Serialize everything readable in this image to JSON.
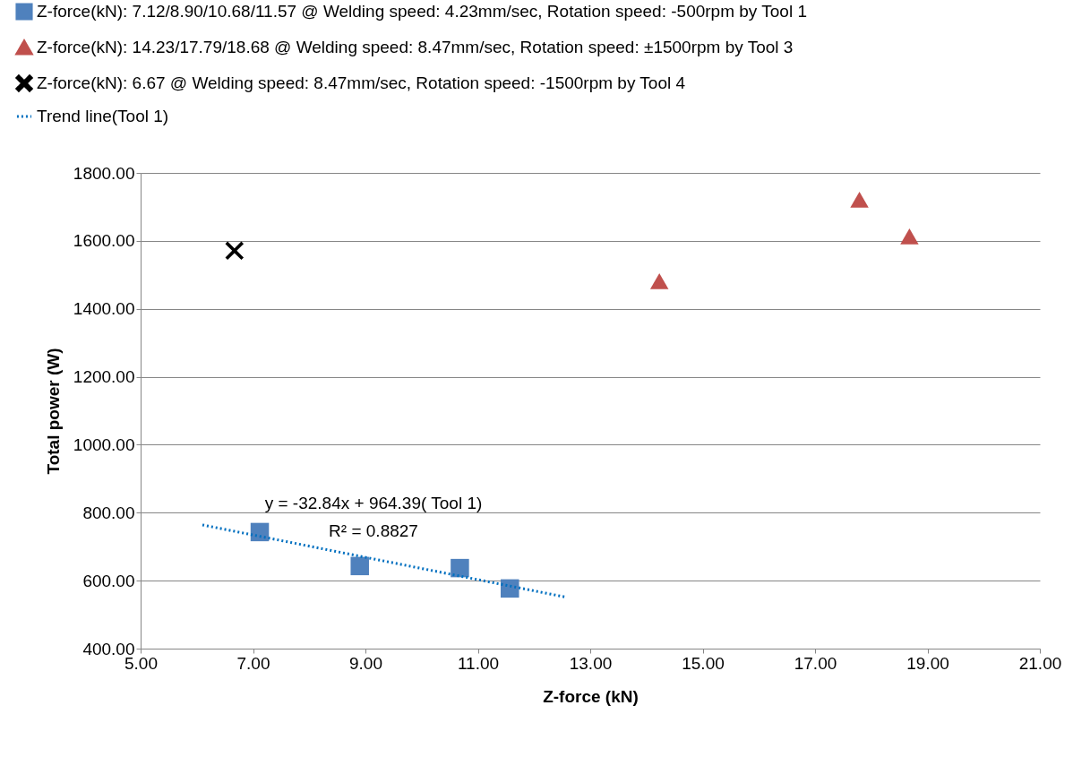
{
  "chart_data": {
    "type": "scatter",
    "xlabel": "Z-force (kN)",
    "ylabel": "Total power (W)",
    "xlim": [
      5,
      21
    ],
    "ylim": [
      400,
      1800
    ],
    "xticks": [
      {
        "value": 5,
        "label": "5.00"
      },
      {
        "value": 7,
        "label": "7.00"
      },
      {
        "value": 9,
        "label": "9.00"
      },
      {
        "value": 11,
        "label": "11.00"
      },
      {
        "value": 13,
        "label": "13.00"
      },
      {
        "value": 15,
        "label": "15.00"
      },
      {
        "value": 17,
        "label": "17.00"
      },
      {
        "value": 19,
        "label": "19.00"
      },
      {
        "value": 21,
        "label": "21.00"
      }
    ],
    "yticks": [
      {
        "value": 400,
        "label": "400.00"
      },
      {
        "value": 600,
        "label": "600.00"
      },
      {
        "value": 800,
        "label": "800.00"
      },
      {
        "value": 1000,
        "label": "1000.00"
      },
      {
        "value": 1200,
        "label": "1200.00"
      },
      {
        "value": 1400,
        "label": "1400.00"
      },
      {
        "value": 1600,
        "label": "1600.00"
      },
      {
        "value": 1800,
        "label": "1800.00"
      }
    ],
    "grid": "y",
    "legend": "top left",
    "series": [
      {
        "name": "Z-force(kN): 7.12/8.90/10.68/11.57 @ Welding speed: 4.23mm/sec, Rotation speed: -500rpm by Tool 1",
        "marker": "square",
        "color": "#4f81bd",
        "x": [
          7.12,
          8.9,
          10.68,
          11.57
        ],
        "values": [
          743,
          643,
          637,
          577
        ]
      },
      {
        "name": "Z-force(kN): 14.23/17.79/18.68 @ Welding speed: 8.47mm/sec, Rotation speed: ±1500rpm by Tool 3",
        "marker": "triangle",
        "color": "#c0504d",
        "x": [
          14.23,
          17.79,
          18.68
        ],
        "values": [
          1481,
          1721,
          1613
        ]
      },
      {
        "name": "Z-force(kN): 6.67 @ Welding speed: 8.47mm/sec, Rotation speed: -1500rpm by Tool 4",
        "marker": "cross",
        "color": "#000000",
        "x": [
          6.67
        ],
        "values": [
          1571
        ]
      },
      {
        "name": "Trend line(Tool 1)",
        "type": "line",
        "marker": "none",
        "line_style": "dotted",
        "color": "#0070c0",
        "x": [
          6.1,
          12.55
        ],
        "values": [
          764,
          552
        ]
      }
    ],
    "annotations": [
      "y = -32.84x + 964.39( Tool 1)",
      "R² = 0.8827"
    ]
  }
}
